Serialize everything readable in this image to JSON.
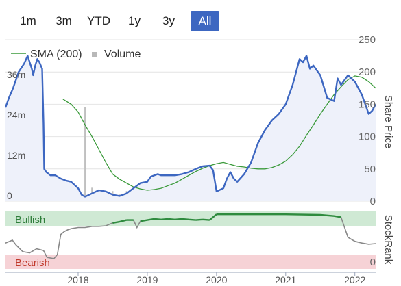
{
  "range_selector": {
    "buttons": [
      {
        "label": "1m",
        "active": false
      },
      {
        "label": "3m",
        "active": false
      },
      {
        "label": "YTD",
        "active": false
      },
      {
        "label": "1y",
        "active": false
      },
      {
        "label": "3y",
        "active": false
      },
      {
        "label": "All",
        "active": true
      }
    ]
  },
  "colors": {
    "price_line": "#3d67c1",
    "sma_line": "#3a9a3a",
    "volume_bar": "#c0c0c0",
    "stockrank_line": "#888888",
    "stockrank_high": "#2e8b3e",
    "bullish_zone": "#cfe9d4",
    "bearish_zone": "#f6d2d6",
    "bullish_text": "#2e7d3a",
    "bearish_text": "#c0392b",
    "active_button": "#3d67c1"
  },
  "chart_data": [
    {
      "type": "line",
      "legend": {
        "placement": "top-left",
        "entries": [
          "SMA (200)",
          "Volume"
        ]
      },
      "y_axis_title": "Share Price",
      "price_axis": {
        "ticks": [
          "0",
          "50",
          "100",
          "150",
          "200",
          "250"
        ],
        "range": [
          0,
          250
        ]
      },
      "volume_axis": {
        "ticks": [
          "0",
          "12m",
          "24m",
          "36m"
        ],
        "range": [
          0,
          48
        ]
      },
      "x_axis": {
        "ticks": [
          "2018",
          "2019",
          "2020",
          "2021",
          "2022"
        ],
        "range": [
          2016.95,
          2022.3
        ]
      },
      "series": [
        {
          "name": "Price",
          "x": [
            2016.95,
            2017.0,
            2017.06,
            2017.14,
            2017.22,
            2017.27,
            2017.3,
            2017.33,
            2017.35,
            2017.38,
            2017.41,
            2017.44,
            2017.48,
            2017.5,
            2017.51,
            2017.54,
            2017.6,
            2017.67,
            2017.75,
            2017.82,
            2017.9,
            2017.95,
            2018.0,
            2018.05,
            2018.1,
            2018.2,
            2018.3,
            2018.4,
            2018.5,
            2018.6,
            2018.7,
            2018.8,
            2018.9,
            2019.0,
            2019.05,
            2019.15,
            2019.2,
            2019.3,
            2019.35,
            2019.4,
            2019.5,
            2019.6,
            2019.7,
            2019.8,
            2019.9,
            2019.95,
            2020.0,
            2020.1,
            2020.15,
            2020.2,
            2020.25,
            2020.3,
            2020.4,
            2020.5,
            2020.6,
            2020.7,
            2020.8,
            2020.9,
            2021.0,
            2021.1,
            2021.2,
            2021.25,
            2021.3,
            2021.35,
            2021.4,
            2021.5,
            2021.6,
            2021.7,
            2021.75,
            2021.8,
            2021.9,
            2022.0,
            2022.1,
            2022.2,
            2022.25,
            2022.3
          ],
          "y": [
            145,
            160,
            175,
            200,
            213,
            225,
            215,
            205,
            195,
            210,
            220,
            215,
            205,
            120,
            50,
            45,
            40,
            40,
            35,
            32,
            30,
            25,
            20,
            10,
            7,
            12,
            17,
            15,
            10,
            8,
            12,
            20,
            28,
            30,
            38,
            42,
            40,
            40,
            40,
            40,
            42,
            45,
            50,
            54,
            55,
            48,
            15,
            20,
            35,
            45,
            35,
            30,
            42,
            60,
            90,
            110,
            125,
            135,
            150,
            180,
            220,
            215,
            225,
            205,
            210,
            195,
            160,
            155,
            190,
            180,
            195,
            185,
            165,
            135,
            140,
            150
          ]
        },
        {
          "name": "SMA (200)",
          "x": [
            2017.78,
            2017.9,
            2018.0,
            2018.1,
            2018.2,
            2018.3,
            2018.4,
            2018.5,
            2018.6,
            2018.7,
            2018.8,
            2018.9,
            2019.0,
            2019.1,
            2019.2,
            2019.3,
            2019.4,
            2019.5,
            2019.6,
            2019.7,
            2019.8,
            2019.9,
            2020.0,
            2020.1,
            2020.2,
            2020.3,
            2020.4,
            2020.5,
            2020.6,
            2020.7,
            2020.8,
            2020.9,
            2021.0,
            2021.1,
            2021.2,
            2021.3,
            2021.4,
            2021.5,
            2021.6,
            2021.7,
            2021.8,
            2021.9,
            2022.0,
            2022.1,
            2022.2,
            2022.3
          ],
          "y": [
            158,
            150,
            138,
            118,
            100,
            80,
            60,
            42,
            34,
            28,
            22,
            19,
            17,
            18,
            20,
            24,
            28,
            34,
            40,
            46,
            51,
            55,
            58,
            60,
            57,
            54,
            53,
            51,
            50,
            50,
            52,
            56,
            62,
            72,
            85,
            102,
            118,
            135,
            150,
            165,
            177,
            188,
            194,
            192,
            185,
            175
          ]
        },
        {
          "name": "Volume",
          "x": [
            2017.5,
            2017.6,
            2017.8,
            2018.0,
            2018.1,
            2018.2,
            2018.25,
            2018.3,
            2018.4,
            2018.5,
            2018.6,
            2018.7,
            2018.8,
            2018.9,
            2019.0,
            2019.1,
            2019.2,
            2019.3,
            2019.4,
            2019.5,
            2019.6,
            2019.7,
            2019.8,
            2019.9,
            2020.0,
            2020.1,
            2020.2,
            2020.3,
            2020.4,
            2020.5,
            2020.6,
            2020.7,
            2020.8,
            2020.9,
            2021.0,
            2021.1,
            2021.2,
            2021.3,
            2021.4,
            2021.5,
            2021.6,
            2021.7,
            2021.8,
            2021.9,
            2022.0,
            2022.1,
            2022.2
          ],
          "y": [
            13,
            4,
            2,
            2,
            28,
            4,
            2,
            3,
            2,
            3,
            2,
            3,
            2,
            3,
            2,
            2,
            3,
            2,
            2,
            3,
            2,
            3,
            2,
            2,
            2,
            4,
            3,
            2,
            2,
            3,
            2,
            2,
            3,
            2,
            2,
            3,
            2,
            2,
            3,
            2,
            2,
            3,
            2,
            2,
            3,
            2,
            2
          ]
        }
      ]
    },
    {
      "type": "line",
      "y_axis_title": "StockRank",
      "zones": {
        "top_label": "Bullish",
        "bottom_label": "Bearish"
      },
      "y_axis": {
        "ticks": [
          "0"
        ],
        "range": [
          0,
          100
        ]
      },
      "x_axis": {
        "ticks": [
          "2018",
          "2019",
          "2020",
          "2021",
          "2022"
        ],
        "range": [
          2016.95,
          2022.3
        ]
      },
      "series": [
        {
          "name": "StockRank",
          "x": [
            2016.95,
            2017.05,
            2017.1,
            2017.2,
            2017.3,
            2017.4,
            2017.5,
            2017.55,
            2017.65,
            2017.7,
            2017.75,
            2017.8,
            2017.85,
            2017.9,
            2018.0,
            2018.1,
            2018.2,
            2018.3,
            2018.4,
            2018.5,
            2018.6,
            2018.7,
            2018.8,
            2018.85,
            2018.9,
            2019.0,
            2019.1,
            2019.2,
            2019.3,
            2019.4,
            2019.5,
            2019.6,
            2019.7,
            2019.8,
            2019.9,
            2020.0,
            2020.5,
            2021.0,
            2021.5,
            2021.7,
            2021.8,
            2021.9,
            2022.0,
            2022.1,
            2022.2,
            2022.3
          ],
          "y": [
            45,
            50,
            42,
            30,
            28,
            35,
            32,
            20,
            18,
            25,
            60,
            65,
            68,
            70,
            72,
            72,
            74,
            74,
            75,
            80,
            82,
            85,
            85,
            72,
            83,
            85,
            87,
            86,
            87,
            86,
            87,
            86,
            85,
            86,
            85,
            95,
            95,
            95,
            94,
            92,
            90,
            55,
            48,
            45,
            43,
            44
          ]
        }
      ]
    }
  ]
}
